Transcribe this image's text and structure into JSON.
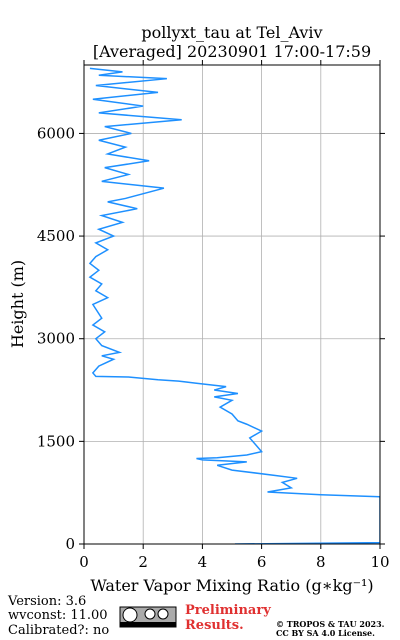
{
  "chart_data": {
    "type": "line",
    "title": "pollyxt_tau at Tel_Aviv",
    "subtitle": "[Averaged] 20230901 17:00-17:59",
    "x_label": "Water Vapor Mixing Ratio (g∗kg⁻¹)",
    "y_label": "Height (m)",
    "color": "#1e90ff",
    "grid": true,
    "xlim": [
      0,
      10
    ],
    "xticks": [
      0,
      2,
      4,
      6,
      8,
      10
    ],
    "ylim": [
      0,
      7000
    ],
    "yticks": [
      0,
      1500,
      3000,
      4500,
      6000
    ],
    "x": [
      5.1,
      10,
      10,
      8,
      6.2,
      7,
      6.7,
      7.2,
      6.5,
      5,
      4.5,
      5.5,
      4,
      3.8,
      4.5,
      5.5,
      6,
      5.8,
      5.6,
      6,
      5.5,
      5.2,
      5,
      4.6,
      5,
      4.4,
      5.2,
      4.4,
      4.8,
      3.8,
      3.2,
      2.5,
      1.5,
      0.4,
      0.3,
      0.5,
      1,
      0.6,
      1.2,
      0.6,
      0.4,
      0.7,
      0.3,
      0.6,
      0.3,
      0.8,
      0.4,
      0.6,
      0.2,
      0.5,
      0.2,
      0.4,
      0.8,
      0.4,
      1,
      0.5,
      1.3,
      0.6,
      1.8,
      0.8,
      1.4,
      2.7,
      0.6,
      1.5,
      0.7,
      2.2,
      0.8,
      1.4,
      0.5,
      1.6,
      0.7,
      3.3,
      0.5,
      2,
      0.3,
      2.5,
      0.4,
      2.8,
      0.5,
      1.3,
      0.2
    ],
    "values": [
      0,
      20,
      690,
      720,
      760,
      820,
      900,
      960,
      1000,
      1080,
      1150,
      1200,
      1230,
      1250,
      1260,
      1300,
      1350,
      1450,
      1550,
      1650,
      1750,
      1800,
      1900,
      2000,
      2100,
      2150,
      2200,
      2250,
      2300,
      2350,
      2380,
      2400,
      2440,
      2450,
      2500,
      2600,
      2700,
      2750,
      2800,
      2900,
      3000,
      3100,
      3200,
      3300,
      3500,
      3600,
      3700,
      3800,
      3900,
      4000,
      4100,
      4200,
      4300,
      4400,
      4500,
      4600,
      4700,
      4800,
      4900,
      5000,
      5050,
      5200,
      5300,
      5400,
      5500,
      5600,
      5700,
      5800,
      5900,
      6000,
      6100,
      6200,
      6300,
      6400,
      6500,
      6600,
      6700,
      6800,
      6850,
      6900,
      6950
    ]
  },
  "footer": {
    "version": "Version: 3.6",
    "wvconst": "wvconst:  11.00",
    "calibrated": "Calibrated?: no",
    "preliminary": "Preliminary",
    "results": "Results.",
    "copyright": "© TROPOS & TAU 2023.",
    "license": "CC BY SA 4.0 License."
  }
}
